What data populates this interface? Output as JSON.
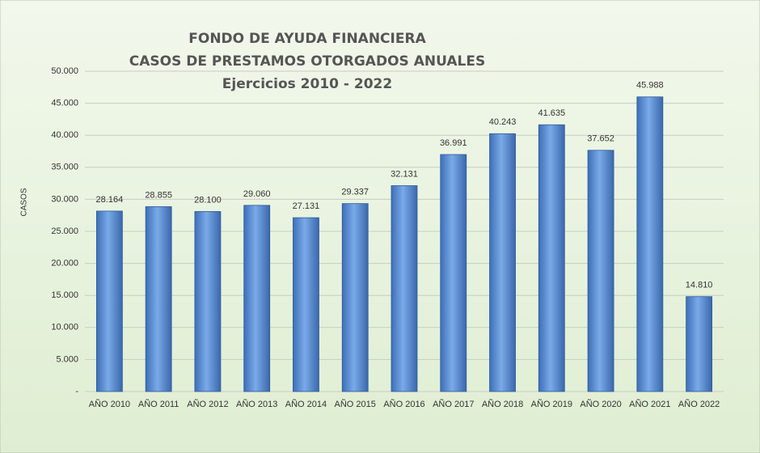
{
  "chart_data": {
    "type": "bar",
    "title": [
      "FONDO DE AYUDA FINANCIERA",
      "CASOS DE PRESTAMOS  OTORGADOS  ANUALES",
      "Ejercicios  2010 - 2022"
    ],
    "y_label": "CASOS",
    "categories": [
      "AÑO 2010",
      "AÑO 2011",
      "AÑO 2012",
      "AÑO 2013",
      "AÑO 2014",
      "AÑO 2015",
      "AÑO 2016",
      "AÑO 2017",
      "AÑO 2018",
      "AÑO 2019",
      "AÑO 2020",
      "AÑO 2021",
      "AÑO 2022"
    ],
    "values": [
      28164,
      28855,
      28100,
      29060,
      27131,
      29337,
      32131,
      36991,
      40243,
      41635,
      37652,
      45988,
      14810
    ],
    "value_labels": [
      "28.164",
      "28.855",
      "28.100",
      "29.060",
      "27.131",
      "29.337",
      "32.131",
      "36.991",
      "40.243",
      "41.635",
      "37.652",
      "45.988",
      "14.810"
    ],
    "color": "#5b8fd6",
    "ylim": [
      0,
      50000
    ],
    "yticks": [
      {
        "value": 0,
        "label": "-"
      },
      {
        "value": 5000,
        "label": "5.000"
      },
      {
        "value": 10000,
        "label": "10.000"
      },
      {
        "value": 15000,
        "label": "15.000"
      },
      {
        "value": 20000,
        "label": "20.000"
      },
      {
        "value": 25000,
        "label": "25.000"
      },
      {
        "value": 30000,
        "label": "30.000"
      },
      {
        "value": 35000,
        "label": "35.000"
      },
      {
        "value": 40000,
        "label": "40.000"
      },
      {
        "value": 45000,
        "label": "45.000"
      },
      {
        "value": 50000,
        "label": "50.000"
      }
    ],
    "grid": true
  }
}
